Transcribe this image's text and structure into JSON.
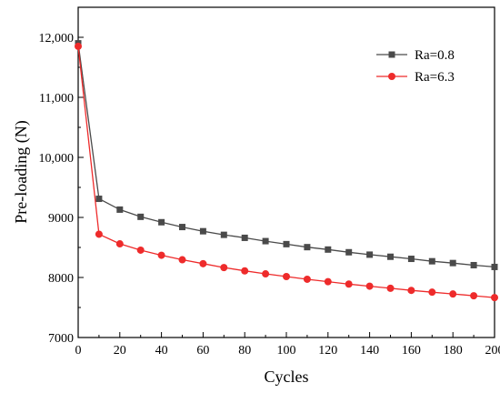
{
  "chart_data": {
    "type": "line",
    "xlabel": "Cycles",
    "ylabel": "Pre-loading (N)",
    "xlim": [
      0,
      200
    ],
    "ylim": [
      7000,
      12500
    ],
    "xticks": [
      0,
      20,
      40,
      60,
      80,
      100,
      120,
      140,
      160,
      180,
      200
    ],
    "xtick_labels": [
      "0",
      "20",
      "40",
      "60",
      "80",
      "100",
      "120",
      "140",
      "160",
      "180",
      "200"
    ],
    "yticks": [
      7000,
      8000,
      9000,
      10000,
      11000,
      12000
    ],
    "ytick_labels": [
      "7000",
      "8000",
      "9000",
      "10,000",
      "11,000",
      "12,000"
    ],
    "x": [
      0,
      10,
      20,
      30,
      40,
      50,
      60,
      70,
      80,
      90,
      100,
      110,
      120,
      130,
      140,
      150,
      160,
      170,
      180,
      190,
      200
    ],
    "series": [
      {
        "name": "Ra=0.8",
        "color": "#4a4a4a",
        "marker": "square",
        "values": [
          11900,
          9310,
          9130,
          9010,
          8920,
          8840,
          8770,
          8710,
          8660,
          8605,
          8555,
          8505,
          8465,
          8420,
          8380,
          8345,
          8310,
          8270,
          8240,
          8205,
          8175
        ]
      },
      {
        "name": "Ra=6.3",
        "color": "#ee2b2b",
        "marker": "circle",
        "values": [
          11850,
          8720,
          8560,
          8455,
          8370,
          8295,
          8230,
          8165,
          8110,
          8060,
          8015,
          7970,
          7930,
          7890,
          7855,
          7820,
          7785,
          7755,
          7725,
          7695,
          7665
        ]
      }
    ],
    "legend_position": "top-right",
    "grid": false
  }
}
